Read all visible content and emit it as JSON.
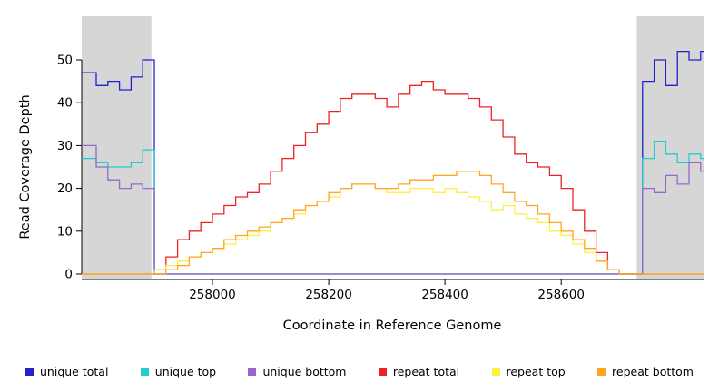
{
  "chart_data": {
    "type": "line",
    "title": "",
    "xlabel": "Coordinate in Reference Genome",
    "ylabel": "Read Coverage Depth",
    "xlim": [
      257775,
      258845
    ],
    "ylim": [
      0,
      50
    ],
    "xticks": [
      258000,
      258200,
      258400,
      258600
    ],
    "yticks": [
      0,
      10,
      20,
      30,
      40,
      50
    ],
    "grid": false,
    "legend_position": "bottom",
    "shaded_regions": [
      {
        "from": 257775,
        "to": 257895
      },
      {
        "from": 258730,
        "to": 258845
      }
    ],
    "colors": {
      "shaded_region": "#d6d6d6",
      "axis": "#000000",
      "background": "#ffffff"
    },
    "x": [
      257780,
      257800,
      257820,
      257840,
      257860,
      257880,
      257900,
      257920,
      257940,
      257960,
      257980,
      258000,
      258020,
      258040,
      258060,
      258080,
      258100,
      258120,
      258140,
      258160,
      258180,
      258200,
      258220,
      258240,
      258260,
      258280,
      258300,
      258320,
      258340,
      258360,
      258380,
      258400,
      258420,
      258440,
      258460,
      258480,
      258500,
      258520,
      258540,
      258560,
      258580,
      258600,
      258620,
      258640,
      258660,
      258680,
      258700,
      258720,
      258740,
      258760,
      258780,
      258800,
      258820,
      258840
    ],
    "series": [
      {
        "name": "unique total",
        "color": "#2222cc",
        "values": [
          47,
          44,
          45,
          43,
          46,
          50,
          0,
          0,
          0,
          0,
          0,
          0,
          0,
          0,
          0,
          0,
          0,
          0,
          0,
          0,
          0,
          0,
          0,
          0,
          0,
          0,
          0,
          0,
          0,
          0,
          0,
          0,
          0,
          0,
          0,
          0,
          0,
          0,
          0,
          0,
          0,
          0,
          0,
          0,
          0,
          0,
          0,
          0,
          45,
          50,
          44,
          52,
          50,
          52
        ]
      },
      {
        "name": "unique top",
        "color": "#22cccc",
        "values": [
          27,
          26,
          25,
          25,
          26,
          29,
          0,
          0,
          0,
          0,
          0,
          0,
          0,
          0,
          0,
          0,
          0,
          0,
          0,
          0,
          0,
          0,
          0,
          0,
          0,
          0,
          0,
          0,
          0,
          0,
          0,
          0,
          0,
          0,
          0,
          0,
          0,
          0,
          0,
          0,
          0,
          0,
          0,
          0,
          0,
          0,
          0,
          0,
          27,
          31,
          28,
          26,
          28,
          27
        ]
      },
      {
        "name": "unique bottom",
        "color": "#9966cc",
        "values": [
          30,
          25,
          22,
          20,
          21,
          20,
          0,
          0,
          0,
          0,
          0,
          0,
          0,
          0,
          0,
          0,
          0,
          0,
          0,
          0,
          0,
          0,
          0,
          0,
          0,
          0,
          0,
          0,
          0,
          0,
          0,
          0,
          0,
          0,
          0,
          0,
          0,
          0,
          0,
          0,
          0,
          0,
          0,
          0,
          0,
          0,
          0,
          0,
          20,
          19,
          23,
          21,
          26,
          24
        ]
      },
      {
        "name": "repeat total",
        "color": "#ee2222",
        "values": [
          0,
          0,
          0,
          0,
          0,
          0,
          1,
          4,
          8,
          10,
          12,
          14,
          16,
          18,
          19,
          21,
          24,
          27,
          30,
          33,
          35,
          38,
          41,
          42,
          42,
          41,
          39,
          42,
          44,
          45,
          43,
          42,
          42,
          41,
          39,
          36,
          32,
          28,
          26,
          25,
          23,
          20,
          15,
          10,
          5,
          1,
          0,
          0,
          0,
          0,
          0,
          0,
          0,
          0
        ]
      },
      {
        "name": "repeat top",
        "color": "#ffee44",
        "values": [
          0,
          0,
          0,
          0,
          0,
          0,
          1,
          2,
          3,
          4,
          5,
          6,
          7,
          8,
          9,
          10,
          12,
          13,
          14,
          16,
          17,
          18,
          20,
          21,
          21,
          20,
          19,
          19,
          20,
          20,
          19,
          20,
          19,
          18,
          17,
          15,
          16,
          14,
          13,
          12,
          10,
          9,
          7,
          5,
          3,
          1,
          0,
          0,
          0,
          0,
          0,
          0,
          0,
          0
        ]
      },
      {
        "name": "repeat bottom",
        "color": "#ffa520",
        "values": [
          0,
          0,
          0,
          0,
          0,
          0,
          0,
          1,
          2,
          4,
          5,
          6,
          8,
          9,
          10,
          11,
          12,
          13,
          15,
          16,
          17,
          19,
          20,
          21,
          21,
          20,
          20,
          21,
          22,
          22,
          23,
          23,
          24,
          24,
          23,
          21,
          19,
          17,
          16,
          14,
          12,
          10,
          8,
          6,
          3,
          1,
          0,
          0,
          0,
          0,
          0,
          0,
          0,
          0
        ]
      }
    ],
    "legend": [
      {
        "label": "unique total",
        "color": "#2222cc"
      },
      {
        "label": "unique top",
        "color": "#22cccc"
      },
      {
        "label": "unique bottom",
        "color": "#9966cc"
      },
      {
        "label": "repeat total",
        "color": "#ee2222"
      },
      {
        "label": "repeat top",
        "color": "#ffee44"
      },
      {
        "label": "repeat bottom",
        "color": "#ffa520"
      }
    ]
  }
}
